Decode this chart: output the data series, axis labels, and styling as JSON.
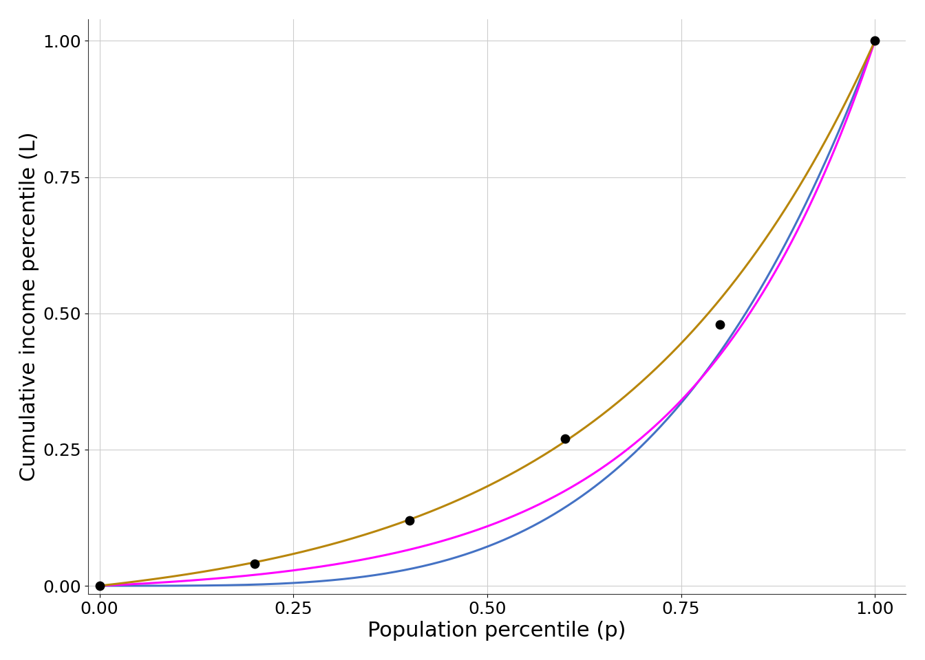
{
  "xlabel": "Population percentile (p)",
  "ylabel": "Cumulative income percentile (L)",
  "data_points_x": [
    0.0,
    0.2,
    0.4,
    0.6,
    0.8,
    1.0
  ],
  "data_points_y": [
    0.0,
    0.04,
    0.12,
    0.27,
    0.48,
    1.0
  ],
  "xticks": [
    0.0,
    0.25,
    0.5,
    0.75,
    1.0
  ],
  "yticks": [
    0.0,
    0.25,
    0.5,
    0.75,
    1.0
  ],
  "blue_color": "#4472C4",
  "magenta_color": "#FF00FF",
  "orange_color": "#B8860B",
  "dot_color": "#000000",
  "dot_size": 80,
  "line_width": 2.2,
  "bg_color": "#FFFFFF",
  "grid_color": "#CCCCCC",
  "blue_alpha": 3.8,
  "magenta_k": 3.0,
  "orange_k": 2.0,
  "xlabel_fontsize": 22,
  "ylabel_fontsize": 22,
  "tick_fontsize": 18
}
